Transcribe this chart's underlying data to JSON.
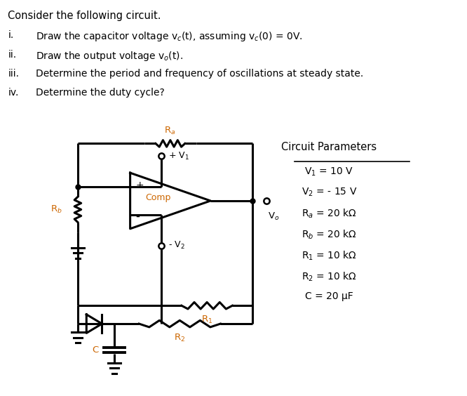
{
  "title": "Consider the following circuit.",
  "bg_color": "#ffffff",
  "text_color": "#000000",
  "circuit_color": "#000000",
  "label_color_orange": "#CC6600",
  "params_title": "Circuit Parameters",
  "params": [
    "V$_1$ = 10 V",
    "V$_2$ = - 15 V",
    "R$_a$ = 20 kΩ",
    "R$_b$ = 20 kΩ",
    "R$_1$ = 10 kΩ",
    "R$_2$ = 10 kΩ",
    "C = 20 μF"
  ]
}
